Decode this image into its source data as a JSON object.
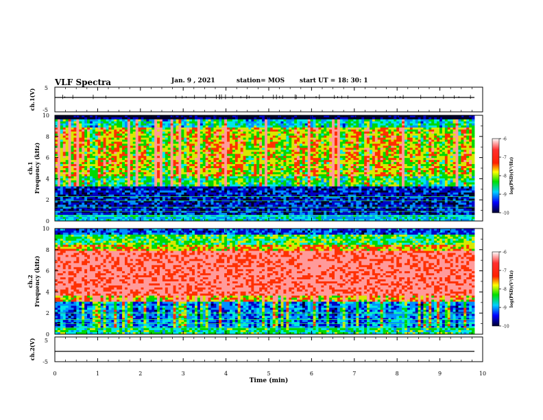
{
  "header": {
    "title": "VLF Spectra",
    "date": "Jan. 9 , 2021",
    "station": "station= MOS",
    "start_ut": "start UT =  18: 30: 1"
  },
  "chart_data": [
    {
      "type": "line",
      "ylabel": "ch.1(V)",
      "yticks": [
        "5",
        "-5"
      ],
      "ylim": [
        -5,
        5
      ],
      "xlim": [
        0,
        10
      ]
    },
    {
      "type": "heatmap",
      "ylabel_line1": "ch.1",
      "ylabel_line2": "Frequency (kHz)",
      "yticks": [
        "0",
        "2",
        "4",
        "6",
        "8",
        "10"
      ],
      "ylim": [
        0,
        10
      ],
      "xlim": [
        0,
        10
      ],
      "colorbar": {
        "label": "log(PSD)(V²/Hz)",
        "ticks": [
          "-6",
          "-7",
          "-8",
          "-9",
          "-10"
        ],
        "range": [
          -10,
          -6
        ]
      }
    },
    {
      "type": "heatmap",
      "ylabel_line1": "ch.2",
      "ylabel_line2": "Frequency (kHz)",
      "yticks": [
        "0",
        "2",
        "4",
        "6",
        "8",
        "10"
      ],
      "ylim": [
        0,
        10
      ],
      "xlim": [
        0,
        10
      ],
      "colorbar": {
        "label": "log(PSD)(V²/Hz)",
        "ticks": [
          "-6",
          "-7",
          "-8",
          "-9",
          "-10"
        ],
        "range": [
          -10,
          -6
        ]
      }
    },
    {
      "type": "line",
      "ylabel": "ch.2(V)",
      "yticks": [
        "5",
        "-5"
      ],
      "ylim": [
        -5,
        5
      ],
      "xlim": [
        0,
        10
      ],
      "xlabel": "Time (min)",
      "xticks": [
        "0",
        "1",
        "2",
        "3",
        "4",
        "5",
        "6",
        "7",
        "8",
        "9",
        "10"
      ]
    }
  ]
}
